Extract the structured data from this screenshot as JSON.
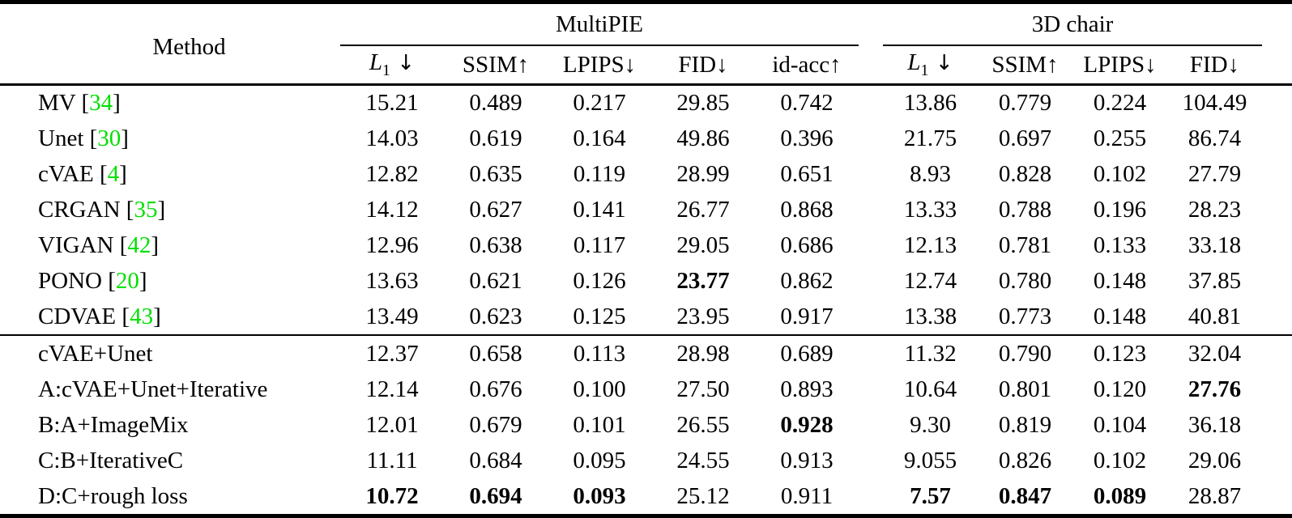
{
  "colors": {
    "citation_green": "#00e000",
    "text": "#000000",
    "background": "#ffffff"
  },
  "table": {
    "method_header": "Method",
    "groups": [
      {
        "label": "MultiPIE"
      },
      {
        "label": "3D chair"
      }
    ],
    "metric_headers": [
      {
        "math_base": "L",
        "math_sub": "1",
        "suffix": " ↓",
        "name": "l1-down"
      },
      {
        "text": "SSIM↑",
        "name": "ssim-up"
      },
      {
        "text": "LPIPS↓",
        "name": "lpips-down"
      },
      {
        "text": "FID↓",
        "name": "fid-down"
      },
      {
        "text": "id-acc↑",
        "name": "id-acc-up"
      },
      {
        "math_base": "L",
        "math_sub": "1",
        "suffix": " ↓",
        "name": "l1-down"
      },
      {
        "text": "SSIM↑",
        "name": "ssim-up"
      },
      {
        "text": "LPIPS↓",
        "name": "lpips-down"
      },
      {
        "text": "FID↓",
        "name": "fid-down"
      }
    ],
    "sections": [
      {
        "rows": [
          {
            "label": "MV",
            "citation": "34",
            "cells": [
              "15.21",
              "0.489",
              "0.217",
              "29.85",
              "0.742",
              "13.86",
              "0.779",
              "0.224",
              "104.49"
            ],
            "bold": []
          },
          {
            "label": "Unet",
            "citation": "30",
            "cells": [
              "14.03",
              "0.619",
              "0.164",
              "49.86",
              "0.396",
              "21.75",
              "0.697",
              "0.255",
              "86.74"
            ],
            "bold": []
          },
          {
            "label": "cVAE",
            "citation": "4",
            "cells": [
              "12.82",
              "0.635",
              "0.119",
              "28.99",
              "0.651",
              "8.93",
              "0.828",
              "0.102",
              "27.79"
            ],
            "bold": []
          },
          {
            "label": "CRGAN",
            "citation": "35",
            "cells": [
              "14.12",
              "0.627",
              "0.141",
              "26.77",
              "0.868",
              "13.33",
              "0.788",
              "0.196",
              "28.23"
            ],
            "bold": []
          },
          {
            "label": "VIGAN",
            "citation": "42",
            "cells": [
              "12.96",
              "0.638",
              "0.117",
              "29.05",
              "0.686",
              "12.13",
              "0.781",
              "0.133",
              "33.18"
            ],
            "bold": []
          },
          {
            "label": "PONO",
            "citation": "20",
            "cells": [
              "13.63",
              "0.621",
              "0.126",
              "23.77",
              "0.862",
              "12.74",
              "0.780",
              "0.148",
              "37.85"
            ],
            "bold": [
              3
            ]
          },
          {
            "label": "CDVAE",
            "citation": "43",
            "cells": [
              "13.49",
              "0.623",
              "0.125",
              "23.95",
              "0.917",
              "13.38",
              "0.773",
              "0.148",
              "40.81"
            ],
            "bold": []
          }
        ]
      },
      {
        "rows": [
          {
            "label": "cVAE+Unet",
            "citation": null,
            "cells": [
              "12.37",
              "0.658",
              "0.113",
              "28.98",
              "0.689",
              "11.32",
              "0.790",
              "0.123",
              "32.04"
            ],
            "bold": []
          },
          {
            "label": "A:cVAE+Unet+Iterative",
            "citation": null,
            "cells": [
              "12.14",
              "0.676",
              "0.100",
              "27.50",
              "0.893",
              "10.64",
              "0.801",
              "0.120",
              "27.76"
            ],
            "bold": [
              8
            ]
          },
          {
            "label": "B:A+ImageMix",
            "citation": null,
            "cells": [
              "12.01",
              "0.679",
              "0.101",
              "26.55",
              "0.928",
              "9.30",
              "0.819",
              "0.104",
              "36.18"
            ],
            "bold": [
              4
            ]
          },
          {
            "label": "C:B+IterativeC",
            "citation": null,
            "cells": [
              "11.11",
              "0.684",
              "0.095",
              "24.55",
              "0.913",
              "9.055",
              "0.826",
              "0.102",
              "29.06"
            ],
            "bold": []
          },
          {
            "label": "D:C+rough loss",
            "citation": null,
            "cells": [
              "10.72",
              "0.694",
              "0.093",
              "25.12",
              "0.911",
              "7.57",
              "0.847",
              "0.089",
              "28.87"
            ],
            "bold": [
              0,
              1,
              2,
              5,
              6,
              7
            ]
          }
        ]
      }
    ]
  }
}
